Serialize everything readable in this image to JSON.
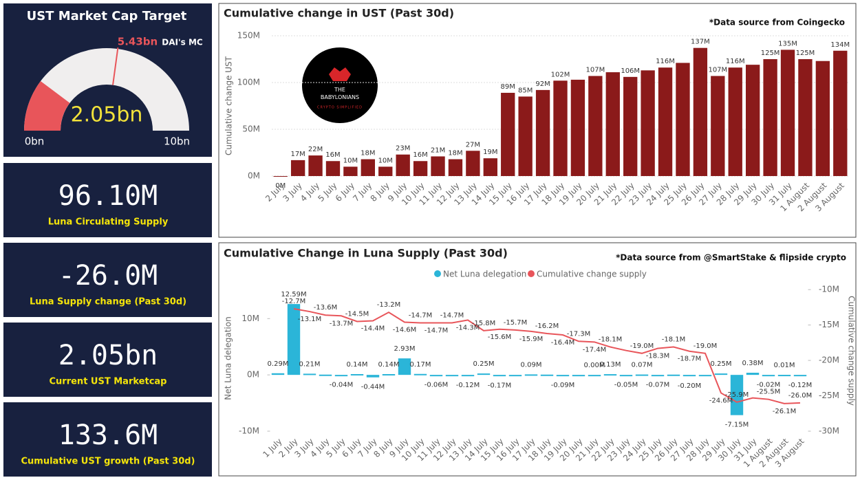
{
  "gauge_panel": null,
  "kpis": [
    {
      "value": "96.10M",
      "label": "Luna Circulating Supply"
    },
    {
      "value": "-26.0M",
      "label": "Luna Supply change (Past 30d)"
    },
    {
      "value": "2.05bn",
      "label": "Current UST Marketcap"
    },
    {
      "value": "133.6M",
      "label": "Cumulative UST growth (Past 30d)"
    }
  ],
  "logo": {
    "name": "THE\nBABYLONIANS",
    "tagline": "CRYPTO SIMPLIFIED"
  },
  "chart_data": [
    {
      "type": "gauge",
      "title": "UST Market Cap Target",
      "value": 2.05,
      "value_label": "2.05bn",
      "min": {
        "value": 0,
        "label": "0bn"
      },
      "max": {
        "value": 10,
        "label": "10bn"
      },
      "target": 5.43,
      "target_label": "5.43bn",
      "target_name": "DAI's MC",
      "color": "#e8555a",
      "track_color": "#f0eeee"
    },
    {
      "type": "bar",
      "title": "Cumulative change in UST (Past 30d)",
      "subtitle": "*Data source from Coingecko",
      "ylabel": "Cumulative change UST",
      "color": "#8b1a1a",
      "categories": [
        "2 July",
        "3 July",
        "4 July",
        "5 July",
        "6 July",
        "7 July",
        "8 July",
        "9 July",
        "10 July",
        "11 July",
        "12 July",
        "13 July",
        "14 July",
        "15 July",
        "16 July",
        "17 July",
        "18 July",
        "19 July",
        "20 July",
        "21 July",
        "22 July",
        "23 July",
        "24 July",
        "25 July",
        "26 July",
        "27 July",
        "28 July",
        "29 July",
        "30 July",
        "31 July",
        "1 August",
        "2 August",
        "3 August"
      ],
      "values": [
        0,
        17,
        22,
        16,
        10,
        18,
        10,
        23,
        16,
        21,
        18,
        27,
        19,
        89,
        85,
        92,
        102,
        103,
        107,
        111,
        106,
        113,
        116,
        121,
        137,
        107,
        116,
        119,
        125,
        135,
        125,
        123,
        134
      ],
      "value_labels": [
        "0M",
        "17M",
        "22M",
        "16M",
        "10M",
        "18M",
        "10M",
        "23M",
        "16M",
        "21M",
        "18M",
        "27M",
        "19M",
        "89M",
        "85M",
        "92M",
        "102M",
        null,
        "107M",
        null,
        "106M",
        null,
        "116M",
        null,
        "137M",
        "107M",
        "116M",
        null,
        "125M",
        "135M",
        "125M",
        null,
        "134M"
      ],
      "ylim": [
        0,
        150
      ],
      "yticks": [
        {
          "value": 0,
          "label": "0M"
        },
        {
          "value": 50,
          "label": "50M"
        },
        {
          "value": 100,
          "label": "100M"
        },
        {
          "value": 150,
          "label": "150M"
        }
      ],
      "grid": true
    },
    {
      "type": "bar-line",
      "title": "Cumulative Change in Luna Supply (Past 30d)",
      "subtitle": "*Data source from @SmartStake & flipside crypto",
      "ylabel": "Net Luna delegation",
      "y2label": "Cumulative change supply",
      "categories": [
        "1 July",
        "2 July",
        "3 July",
        "4 July",
        "5 July",
        "6 July",
        "7 July",
        "8 July",
        "9 July",
        "10 July",
        "11 July",
        "12 July",
        "13 July",
        "14 July",
        "15 July",
        "16 July",
        "17 July",
        "18 July",
        "19 July",
        "20 July",
        "21 July",
        "22 July",
        "23 July",
        "24 July",
        "25 July",
        "26 July",
        "27 July",
        "28 July",
        "29 July",
        "30 July",
        "31 July",
        "1 August",
        "2 August",
        "3 August"
      ],
      "series": [
        {
          "name": "Net Luna delegation",
          "color": "#2bb5d8",
          "kind": "bar",
          "values": [
            0.29,
            12.59,
            0.21,
            0.05,
            -0.04,
            0.14,
            -0.44,
            0.14,
            2.93,
            0.17,
            -0.06,
            -0.05,
            -0.12,
            0.25,
            -0.17,
            -0.05,
            0.09,
            0.05,
            -0.09,
            -0.05,
            0,
            0.13,
            -0.05,
            0.07,
            -0.07,
            0.05,
            -0.2,
            -0.05,
            0.25,
            -7.15,
            0.38,
            -0.02,
            0.01,
            -0.12
          ],
          "value_labels": [
            "0.29M",
            "12.59M",
            "0.21M",
            null,
            "-0.04M",
            "0.14M",
            "-0.44M",
            "0.14M",
            "2.93M",
            "0.17M",
            "-0.06M",
            null,
            "-0.12M",
            "0.25M",
            "-0.17M",
            null,
            "0.09M",
            null,
            "-0.09M",
            null,
            "0.00M",
            "0.13M",
            "-0.05M",
            "0.07M",
            "-0.07M",
            null,
            "-0.20M",
            null,
            "0.25M",
            "-7.15M",
            "0.38M",
            "-0.02M",
            "0.01M",
            "-0.12M"
          ]
        },
        {
          "name": "Cumulative change supply",
          "color": "#e8555a",
          "kind": "line",
          "axis": "y2",
          "values": [
            null,
            -12.7,
            -13.1,
            -13.6,
            -13.7,
            -14.5,
            -14.4,
            -13.2,
            -14.6,
            -14.7,
            -14.7,
            -14.7,
            -14.3,
            -15.8,
            -15.6,
            -15.7,
            -15.9,
            -16.2,
            -16.4,
            -17.3,
            -17.4,
            -18.1,
            -18.6,
            -19.0,
            -18.3,
            -18.1,
            -18.7,
            -19.0,
            -24.6,
            -25.9,
            -25.3,
            -25.5,
            -26.1,
            -26.0
          ],
          "value_labels": [
            null,
            "-12.7M",
            "-13.1M",
            "-13.6M",
            "-13.7M",
            "-14.5M",
            "-14.4M",
            "-13.2M",
            "-14.6M",
            "-14.7M",
            "-14.7M",
            "-14.7M",
            "-14.3M",
            "-15.8M",
            "-15.6M",
            "-15.7M",
            "-15.9M",
            "-16.2M",
            "-16.4M",
            "-17.3M",
            "-17.4M",
            "-18.1M",
            null,
            "-19.0M",
            "-18.3M",
            "-18.1M",
            "-18.7M",
            "-19.0M",
            "-24.6M",
            "-25.9M",
            null,
            "-25.5M",
            "-26.1M",
            "-26.0M"
          ]
        }
      ],
      "ylim": [
        -10,
        15.9
      ],
      "yticks": [
        {
          "value": -10,
          "label": "-10M"
        },
        {
          "value": 0,
          "label": "0M"
        },
        {
          "value": 10,
          "label": "10M"
        }
      ],
      "y2lim": [
        -30,
        -9.4
      ],
      "y2ticks": [
        {
          "value": -30,
          "label": "-30M"
        },
        {
          "value": -25,
          "label": "-25M"
        },
        {
          "value": -20,
          "label": "-20M"
        },
        {
          "value": -15,
          "label": "-15M"
        },
        {
          "value": -10,
          "label": "-10M"
        }
      ],
      "legend": "top"
    }
  ]
}
